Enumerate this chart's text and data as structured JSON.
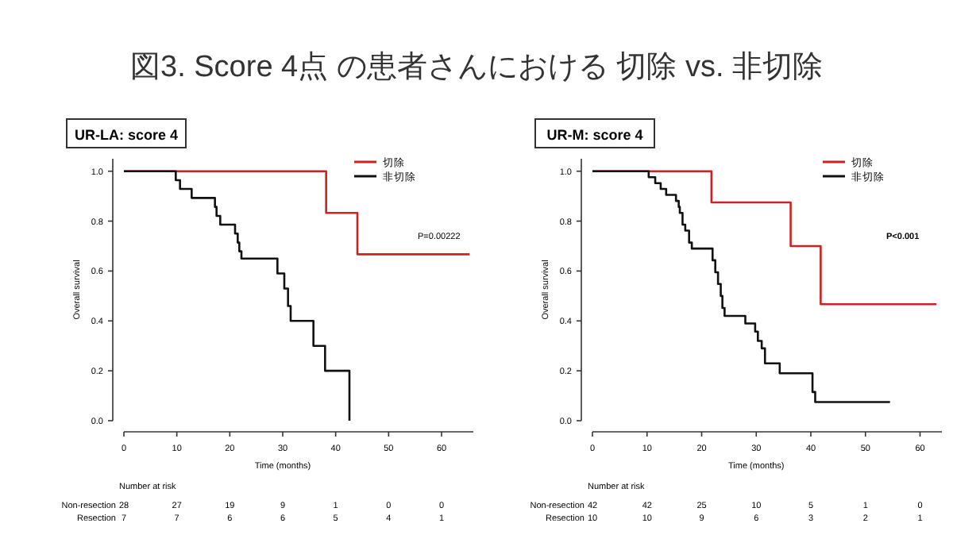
{
  "chart_data": [
    {
      "type": "step",
      "title": "図3. Score 4点 の患者さんにおける 切除 vs. 非切除",
      "subtitle": "UR-LA: score 4",
      "xlabel": "Time (months)",
      "ylabel": "Overall survival",
      "xlim": [
        0,
        66
      ],
      "ylim": [
        0,
        1.05
      ],
      "xticks": [
        0,
        10,
        20,
        30,
        40,
        50,
        60
      ],
      "yticks": [
        {
          "value": 0,
          "label": "0.0"
        },
        {
          "value": 0.2,
          "label": "0.2"
        },
        {
          "value": 0.4,
          "label": "0.4"
        },
        {
          "value": 0.6,
          "label": "0.6"
        },
        {
          "value": 0.8,
          "label": "0.8"
        },
        {
          "value": 1,
          "label": "1.0"
        }
      ],
      "legend": "top right",
      "series": [
        {
          "name": "切除",
          "color": "#cc2222",
          "x": [
            0,
            38.2,
            44.1,
            65.3
          ],
          "values": [
            1,
            0.833,
            0.667,
            0.667
          ]
        },
        {
          "name": "非切除",
          "color": "#111111",
          "x": [
            0,
            9.8,
            10.6,
            12.8,
            17.2,
            17.5,
            18.2,
            21.0,
            21.5,
            21.8,
            22.2,
            29.0,
            30.3,
            31.0,
            31.5,
            35.8,
            38.0,
            42.6
          ],
          "values": [
            1,
            0.964,
            0.929,
            0.893,
            0.857,
            0.821,
            0.786,
            0.75,
            0.714,
            0.679,
            0.65,
            0.59,
            0.53,
            0.46,
            0.4,
            0.3,
            0.2,
            0
          ]
        }
      ],
      "annotations": [
        "P=0.00222",
        "Number at risk",
        "Non-resection",
        "Resection",
        "28 27 19 9 1 0 0",
        "7 7 6 6 5 4 1"
      ]
    },
    {
      "type": "step",
      "subtitle": "UR-M: score 4",
      "xlabel": "Time (months)",
      "ylabel": "Overall survival",
      "xlim": [
        0,
        64
      ],
      "ylim": [
        0,
        1.05
      ],
      "xticks": [
        0,
        10,
        20,
        30,
        40,
        50,
        60
      ],
      "yticks": [
        {
          "value": 0,
          "label": "0.0"
        },
        {
          "value": 0.2,
          "label": "0.2"
        },
        {
          "value": 0.4,
          "label": "0.4"
        },
        {
          "value": 0.6,
          "label": "0.6"
        },
        {
          "value": 0.8,
          "label": "0.8"
        },
        {
          "value": 1,
          "label": "1.0"
        }
      ],
      "legend": "top right",
      "series": [
        {
          "name": "切除",
          "color": "#cc2222",
          "x": [
            0,
            21.8,
            36.3,
            41.8,
            63
          ],
          "values": [
            1,
            0.875,
            0.7,
            0.467,
            0.467
          ]
        },
        {
          "name": "非切除",
          "color": "#111111",
          "x": [
            0,
            10.3,
            11.5,
            12.5,
            13.5,
            15.3,
            15.8,
            16.0,
            16.5,
            17.0,
            17.7,
            18.2,
            22.0,
            22.5,
            23.0,
            23.5,
            23.8,
            24.2,
            28.0,
            29.8,
            30.3,
            31.0,
            31.6,
            34.3,
            40.3,
            40.8,
            54.5
          ],
          "values": [
            1,
            0.976,
            0.952,
            0.929,
            0.905,
            0.881,
            0.857,
            0.833,
            0.786,
            0.762,
            0.714,
            0.69,
            0.643,
            0.595,
            0.548,
            0.5,
            0.452,
            0.42,
            0.39,
            0.357,
            0.32,
            0.29,
            0.23,
            0.19,
            0.115,
            0.075,
            0.075
          ]
        }
      ],
      "annotations": [
        "P<0.001",
        "Number at risk",
        "Non-resection",
        "Resection",
        "42 42 25 10 5 1 0",
        "10 10 9 6 3 2 1"
      ]
    }
  ]
}
